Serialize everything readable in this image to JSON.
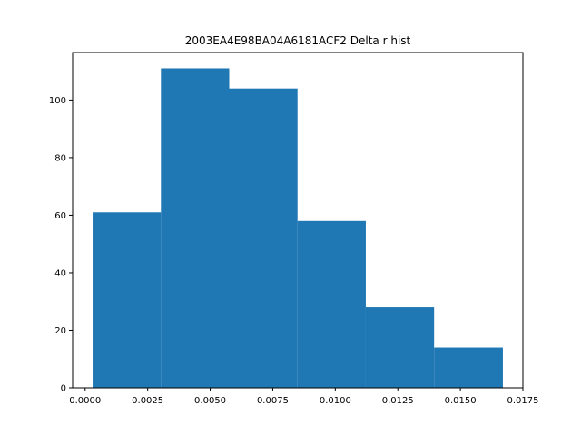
{
  "chart_data": {
    "type": "bar",
    "title": "2003EA4E98BA04A6181ACF2 Delta r hist",
    "xlabel": "",
    "ylabel": "",
    "xlim": [
      -0.0005,
      0.0175
    ],
    "ylim": [
      0,
      116.5
    ],
    "bins": [
      {
        "x0": 0.0003,
        "x1": 0.00303,
        "count": 61
      },
      {
        "x0": 0.00303,
        "x1": 0.00576,
        "count": 111
      },
      {
        "x0": 0.00576,
        "x1": 0.00849,
        "count": 104
      },
      {
        "x0": 0.00849,
        "x1": 0.01122,
        "count": 58
      },
      {
        "x0": 0.01122,
        "x1": 0.01395,
        "count": 28
      },
      {
        "x0": 0.01395,
        "x1": 0.0167,
        "count": 14
      }
    ],
    "xticks": [
      {
        "value": 0.0,
        "label": "0.0000"
      },
      {
        "value": 0.0025,
        "label": "0.0025"
      },
      {
        "value": 0.005,
        "label": "0.0050"
      },
      {
        "value": 0.0075,
        "label": "0.0075"
      },
      {
        "value": 0.01,
        "label": "0.0100"
      },
      {
        "value": 0.0125,
        "label": "0.0125"
      },
      {
        "value": 0.015,
        "label": "0.0150"
      },
      {
        "value": 0.0175,
        "label": "0.0175"
      }
    ],
    "yticks": [
      {
        "value": 0,
        "label": "0"
      },
      {
        "value": 20,
        "label": "20"
      },
      {
        "value": 40,
        "label": "40"
      },
      {
        "value": 60,
        "label": "60"
      },
      {
        "value": 80,
        "label": "80"
      },
      {
        "value": 100,
        "label": "100"
      }
    ],
    "grid": false,
    "bar_color": "#1f77b4"
  }
}
